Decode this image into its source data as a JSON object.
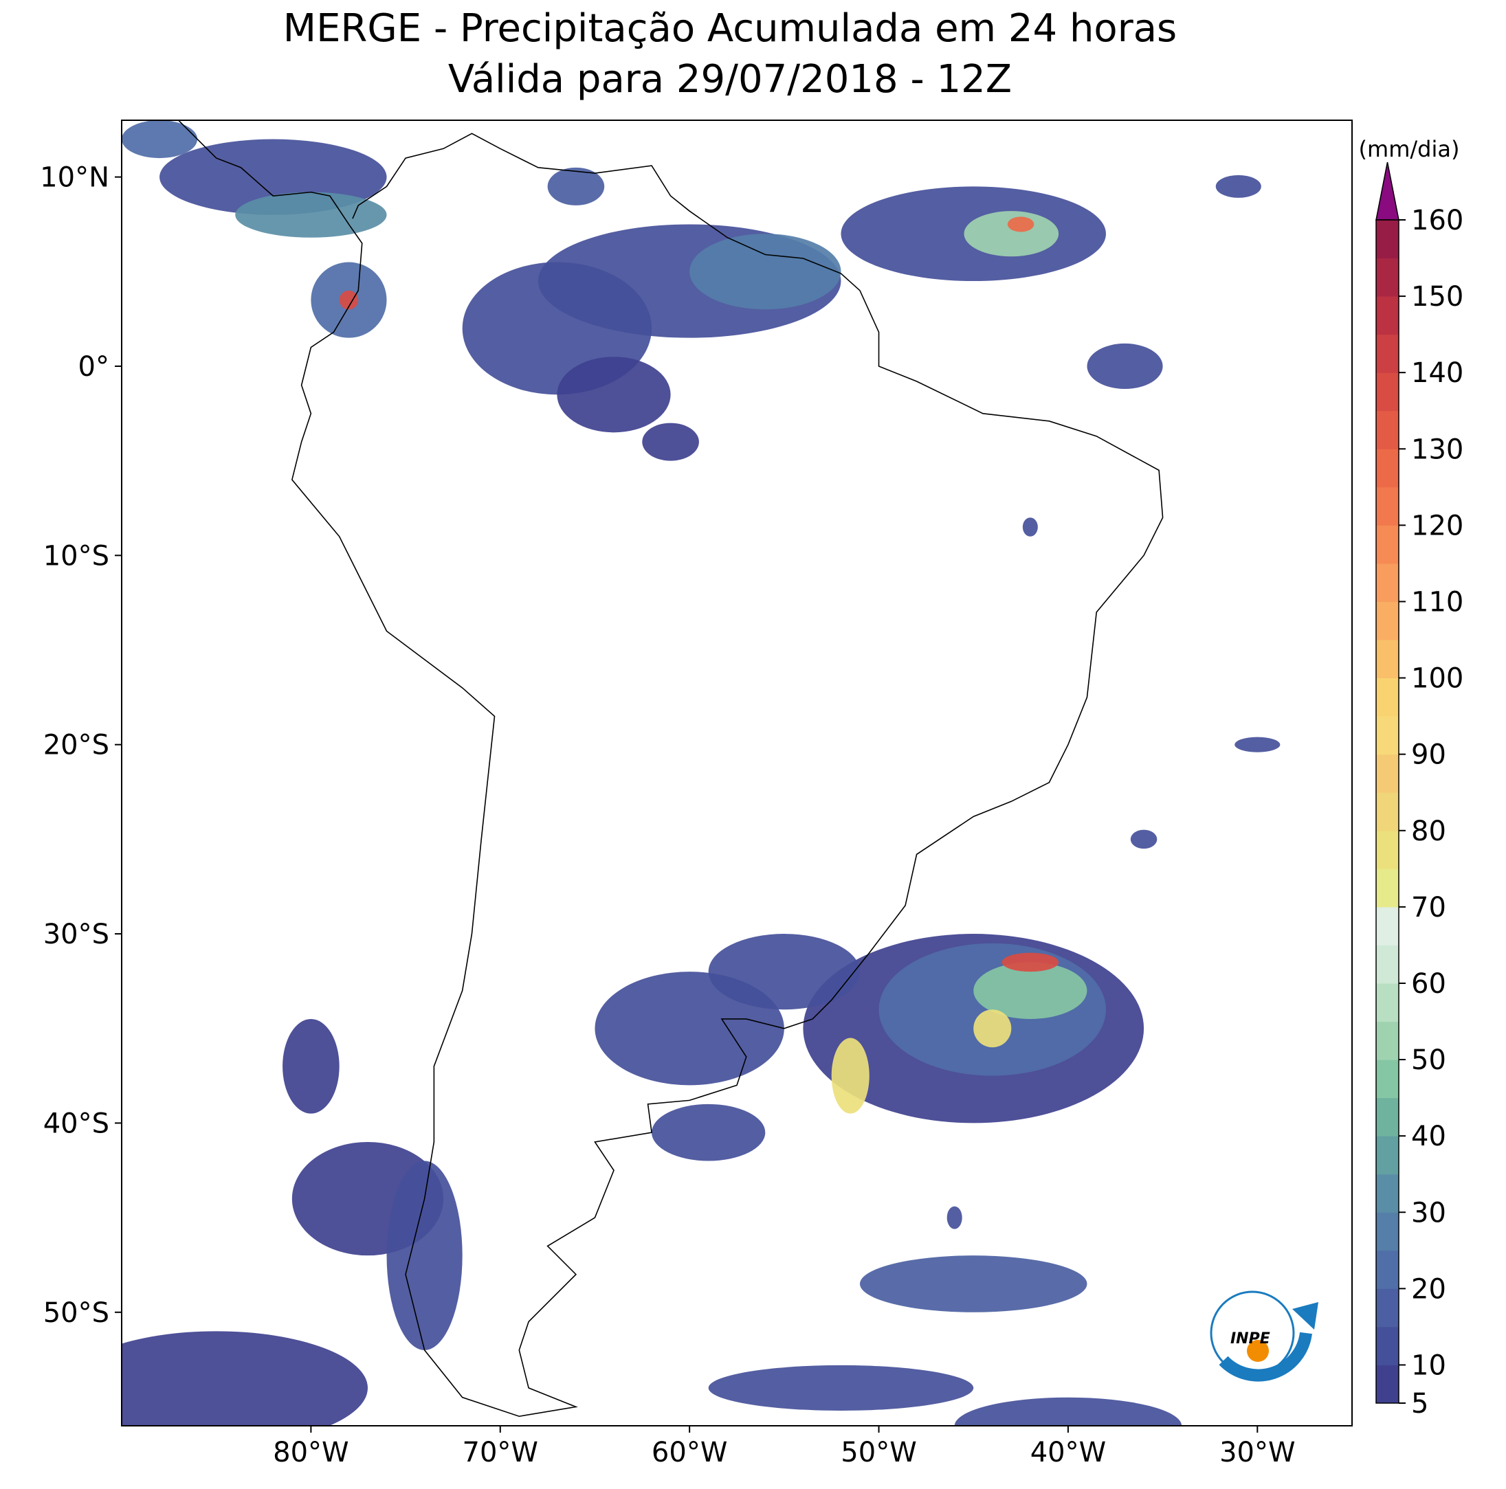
{
  "map": {
    "title": [
      "MERGE - Precipitação Acumulada em 24 horas",
      "Válida para 29/07/2018 - 12Z"
    ],
    "xlim": [
      -90,
      -25
    ],
    "ylim": [
      -56,
      13
    ],
    "xticks": [
      {
        "value": -80,
        "label": "80°W"
      },
      {
        "value": -70,
        "label": "70°W"
      },
      {
        "value": -60,
        "label": "60°W"
      },
      {
        "value": -50,
        "label": "50°W"
      },
      {
        "value": -40,
        "label": "40°W"
      },
      {
        "value": -30,
        "label": "30°W"
      }
    ],
    "yticks": [
      {
        "value": 10,
        "label": "10°N"
      },
      {
        "value": 0,
        "label": "0°"
      },
      {
        "value": -10,
        "label": "10°S"
      },
      {
        "value": -20,
        "label": "20°S"
      },
      {
        "value": -30,
        "label": "30°S"
      },
      {
        "value": -40,
        "label": "40°S"
      },
      {
        "value": -50,
        "label": "50°S"
      }
    ],
    "colorbar": {
      "label": "(mm/dia)",
      "clim": [
        5,
        160
      ],
      "ticks": [
        5,
        10,
        20,
        30,
        40,
        50,
        60,
        70,
        80,
        90,
        100,
        110,
        120,
        130,
        140,
        150,
        160
      ],
      "colors": [
        "#3f418f",
        "#45509a",
        "#4b5fa2",
        "#506ea8",
        "#557ea9",
        "#5a8ea6",
        "#62a0a1",
        "#6fb39f",
        "#85c6a4",
        "#9fd3b0",
        "#b8dfc1",
        "#cfe9d6",
        "#dfefe4",
        "#e6ea8a",
        "#ebe07c",
        "#f0d579",
        "#f4cb74",
        "#f7d979",
        "#f9d36f",
        "#f9bf69",
        "#f9ae63",
        "#f89d5d",
        "#f68b55",
        "#f2794e",
        "#ec6a48",
        "#e45b45",
        "#d94c43",
        "#cc3f42",
        "#bc3242",
        "#aa2744",
        "#981d46"
      ],
      "extend_color": "#8a0a80"
    },
    "logo": "INPE"
  }
}
